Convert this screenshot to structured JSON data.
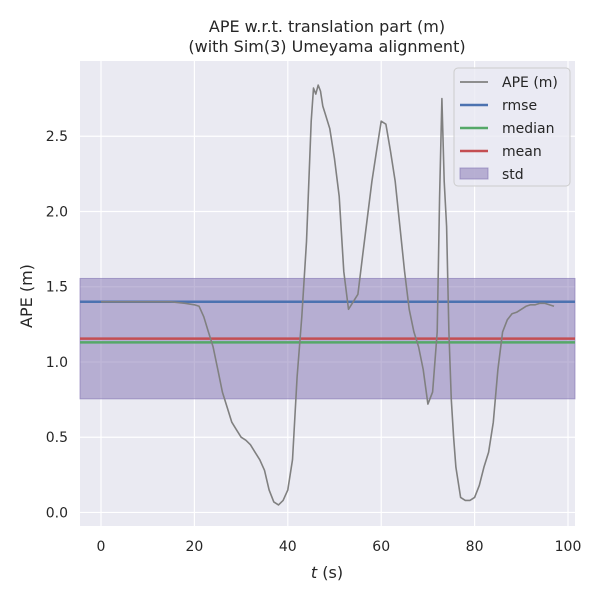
{
  "chart_data": {
    "type": "line",
    "title": [
      "APE w.r.t. translation part (m)",
      "(with Sim(3) Umeyama alignment)"
    ],
    "xlabel_italic": "t",
    "xlabel_rest": " (s)",
    "ylabel": "APE (m)",
    "xlim": [
      -4.5,
      101.5
    ],
    "ylim": [
      -0.09,
      3.0
    ],
    "xticks": [
      0,
      20,
      40,
      60,
      80,
      100
    ],
    "xtick_labels": [
      "0",
      "20",
      "40",
      "60",
      "80",
      "100"
    ],
    "yticks": [
      0.0,
      0.5,
      1.0,
      1.5,
      2.0,
      2.5
    ],
    "ytick_labels": [
      "0.0",
      "0.5",
      "1.0",
      "1.5",
      "2.0",
      "2.5"
    ],
    "grid": true,
    "legend_position": "top-right",
    "series": [
      {
        "name": "APE (m)",
        "kind": "line",
        "color": "#808080",
        "x": [
          0,
          5,
          10,
          15,
          18,
          20,
          21,
          22,
          23,
          24,
          25,
          26,
          27,
          28,
          29,
          30,
          31,
          32,
          33,
          34,
          35,
          36,
          37,
          38,
          39,
          40,
          41,
          42,
          43,
          44,
          45,
          45.5,
          46,
          46.5,
          47,
          47.5,
          48,
          49,
          50,
          51,
          52,
          53,
          54,
          55,
          56,
          57,
          58,
          59,
          60,
          61,
          62,
          63,
          64,
          65,
          66,
          67,
          68,
          69,
          70,
          71,
          72,
          72.5,
          73,
          73.5,
          74,
          74.5,
          75,
          75.5,
          76,
          77,
          78,
          79,
          80,
          81,
          82,
          83,
          84,
          85,
          86,
          87,
          88,
          89,
          90,
          91,
          92,
          93,
          94,
          95,
          96,
          97
        ],
        "y": [
          1.4,
          1.4,
          1.4,
          1.4,
          1.39,
          1.38,
          1.37,
          1.3,
          1.2,
          1.1,
          0.95,
          0.8,
          0.7,
          0.6,
          0.55,
          0.5,
          0.48,
          0.45,
          0.4,
          0.35,
          0.28,
          0.15,
          0.07,
          0.05,
          0.08,
          0.15,
          0.35,
          0.9,
          1.3,
          1.8,
          2.6,
          2.82,
          2.78,
          2.84,
          2.8,
          2.7,
          2.65,
          2.55,
          2.35,
          2.1,
          1.6,
          1.35,
          1.4,
          1.45,
          1.7,
          1.95,
          2.2,
          2.4,
          2.6,
          2.58,
          2.4,
          2.2,
          1.9,
          1.6,
          1.35,
          1.2,
          1.1,
          0.95,
          0.72,
          0.8,
          1.2,
          2.1,
          2.75,
          2.2,
          1.9,
          1.2,
          0.75,
          0.5,
          0.3,
          0.1,
          0.08,
          0.08,
          0.1,
          0.18,
          0.3,
          0.4,
          0.6,
          0.95,
          1.2,
          1.28,
          1.32,
          1.33,
          1.35,
          1.37,
          1.38,
          1.38,
          1.39,
          1.39,
          1.38,
          1.37
        ]
      },
      {
        "name": "rmse",
        "kind": "hline",
        "value": 1.4,
        "color": "#4c72b0"
      },
      {
        "name": "median",
        "kind": "hline",
        "value": 1.13,
        "color": "#55a868"
      },
      {
        "name": "mean",
        "kind": "hline",
        "value": 1.155,
        "color": "#c44e52"
      },
      {
        "name": "std",
        "kind": "band",
        "range": [
          0.755,
          1.555
        ],
        "color": "#8172b2"
      }
    ]
  },
  "colors": {
    "plot_background": "#eaeaf2",
    "grid": "#ffffff",
    "std_fill": "#8172b2"
  }
}
